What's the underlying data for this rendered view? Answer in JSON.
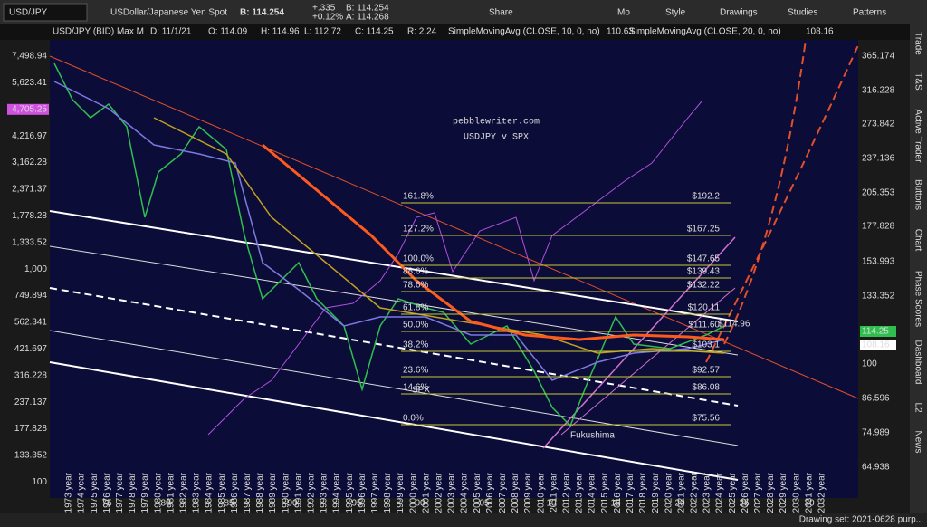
{
  "toolbar": {
    "symbol": "USD/JPY",
    "description": "USDollar/Japanese Yen Spot",
    "bid": "B: 114.254",
    "change": "+.335",
    "change_pct": "+0.12%",
    "bid_small": "B: 114.254",
    "ask_small": "A: 114.268",
    "buttons": [
      "Share",
      "Mo",
      "Style",
      "Drawings",
      "Studies",
      "Patterns"
    ]
  },
  "header": {
    "title": "USD/JPY (BID) Max M",
    "date": "D: 11/1/21",
    "open": "O: 114.09",
    "high": "H: 114.96",
    "low": "L: 112.72",
    "close": "C: 114.25",
    "range": "R: 2.24",
    "study1": "SimpleMovingAvg (CLOSE, 10, 0, no)",
    "study1_value": "110.63",
    "study2": "SimpleMovingAvg (CLOSE, 20, 0, no)",
    "study2_value": "108.16"
  },
  "left_axis": [
    "7,498.94",
    "5,623.41",
    "4,705.25",
    "4,216.97",
    "3,162.28",
    "2,371.37",
    "1,778.28",
    "1,333.52",
    "1,000",
    "749.894",
    "562.341",
    "421.697",
    "316.228",
    "237.137",
    "177.828",
    "133.352",
    "100"
  ],
  "right_axis": [
    "365.174",
    "316.228",
    "273.842",
    "237.136",
    "205.353",
    "177.828",
    "153.993",
    "133.352",
    "114.25",
    "108.16",
    "100",
    "86.596",
    "74.989",
    "64.938"
  ],
  "x_axis": [
    "75",
    "80",
    "85",
    "90",
    "95",
    "00",
    "05",
    "10",
    "15",
    "20",
    "25",
    "30"
  ],
  "years": [
    "1973 year",
    "1974 year",
    "1975 year",
    "1976 year",
    "1977 year",
    "1978 year",
    "1979 year",
    "1980 year",
    "1981 year",
    "1982 year",
    "1983 year",
    "1984 year",
    "1985 year",
    "1986 year",
    "1987 year",
    "1988 year",
    "1989 year",
    "1990 year",
    "1991 year",
    "1992 year",
    "1993 year",
    "1994 year",
    "1995 year",
    "1996 year",
    "1997 year",
    "1998 year",
    "1999 year",
    "2000 year",
    "2001 year",
    "2002 year",
    "2003 year",
    "2004 year",
    "2005 year",
    "2006 year",
    "2007 year",
    "2008 year",
    "2009 year",
    "2010 year",
    "2011 year",
    "2012 year",
    "2013 year",
    "2014 year",
    "2015 year",
    "2016 year",
    "2017 year",
    "2018 year",
    "2019 year",
    "2020 year",
    "2021 year",
    "2022 year",
    "2023 year",
    "2024 year",
    "2025 year",
    "2026 year",
    "2027 year",
    "2028 year",
    "2029 year",
    "2030 year",
    "2031 year",
    "2032 year"
  ],
  "annotations": {
    "site": "pebblewriter.com",
    "subtitle": "USDJPY v SPX",
    "spx": "SPX",
    "event": "Fukushima",
    "last_high": "$114.96"
  },
  "fib_levels": [
    [
      "161.8%",
      "$192.2"
    ],
    [
      "127.2%",
      "$167.25"
    ],
    [
      "100.0%",
      "$147.65"
    ],
    [
      "88.6%",
      "$139.43"
    ],
    [
      "78.6%",
      "$132.22"
    ],
    [
      "61.8%",
      "$120.11"
    ],
    [
      "50.0%",
      "$111.60"
    ],
    [
      "38.2%",
      "$103.1"
    ],
    [
      "23.6%",
      "$92.57"
    ],
    [
      "14.6%",
      "$86.08"
    ],
    [
      "0.0%",
      "$75.56"
    ]
  ],
  "side_tabs": [
    "Trade",
    "T&S",
    "Active Trader",
    "Buttons",
    "Chart",
    "Phase Scores",
    "Dashboard",
    "L2",
    "News"
  ],
  "footer": {
    "drawing_set": "Drawing set: 2021-0628 purp..."
  }
}
